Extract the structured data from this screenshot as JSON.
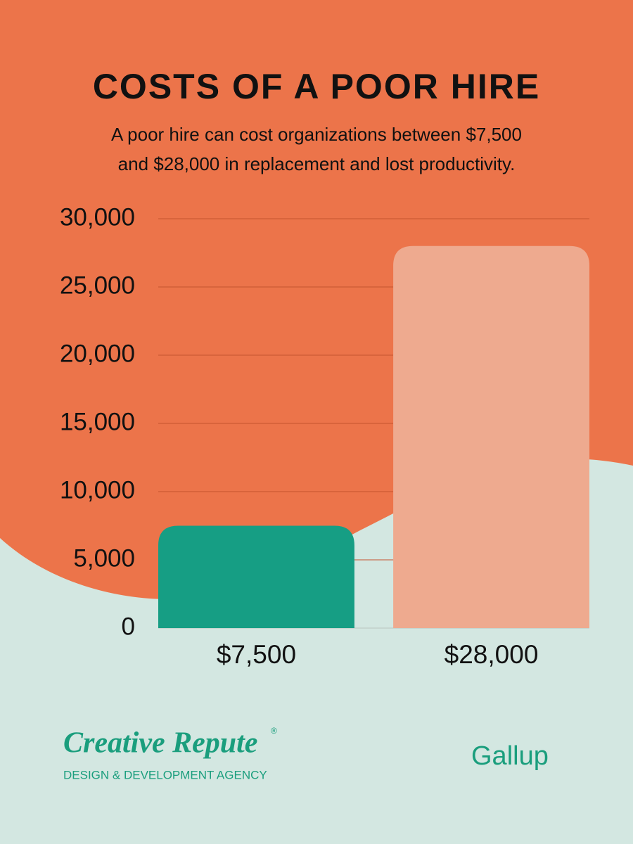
{
  "chart_data": {
    "type": "bar",
    "title": "COSTS OF A POOR HIRE",
    "subtitle": [
      "A poor hire can cost organizations between $7,500",
      "and $28,000 in replacement and lost productivity."
    ],
    "categories": [
      "$7,500",
      "$28,000"
    ],
    "values": [
      7500,
      28000
    ],
    "colors": [
      "#169e84",
      "#eeaa8f"
    ],
    "ylim": [
      0,
      30000
    ],
    "yticks": [
      0,
      {
        "value": 5000,
        "label": "5,000"
      },
      {
        "value": 10000,
        "label": "10,000"
      },
      {
        "value": 15000,
        "label": "15,000"
      },
      {
        "value": 20000,
        "label": "20,000"
      },
      {
        "value": 25000,
        "label": "25,000"
      },
      {
        "value": 30000,
        "label": "30,000"
      }
    ],
    "grid": true
  },
  "footer": {
    "brand": "Creative Repute",
    "brand_mark": "®",
    "tagline": "DESIGN & DEVELOPMENT AGENCY",
    "source": "Gallup"
  }
}
